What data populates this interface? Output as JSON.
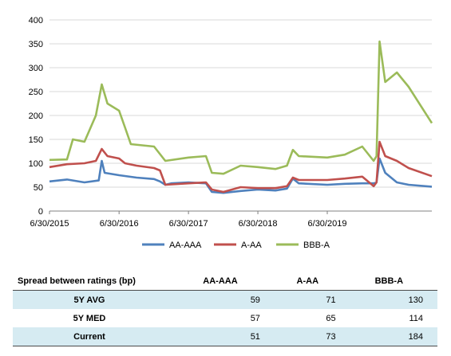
{
  "chart_data": {
    "type": "line",
    "x_start": "6/30/2015",
    "x_end": "12/31/2020",
    "x_ticks": [
      "6/30/2015",
      "6/30/2016",
      "6/30/2017",
      "6/30/2018",
      "6/30/2019"
    ],
    "y_ticks": [
      0,
      50,
      100,
      150,
      200,
      250,
      300,
      350,
      400
    ],
    "ylim": [
      0,
      400
    ],
    "grid": true,
    "legend_position": "bottom",
    "series": [
      {
        "name": "AA-AAA",
        "color": "#4f81bd",
        "points": [
          [
            "6/30/2015",
            62
          ],
          [
            "9/30/2015",
            66
          ],
          [
            "12/31/2015",
            60
          ],
          [
            "3/15/2016",
            64
          ],
          [
            "3/31/2016",
            105
          ],
          [
            "4/15/2016",
            80
          ],
          [
            "6/30/2016",
            75
          ],
          [
            "9/30/2016",
            70
          ],
          [
            "12/31/2016",
            67
          ],
          [
            "1/31/2017",
            62
          ],
          [
            "2/28/2017",
            55
          ],
          [
            "3/31/2017",
            58
          ],
          [
            "6/30/2017",
            60
          ],
          [
            "9/30/2017",
            58
          ],
          [
            "10/31/2017",
            40
          ],
          [
            "12/31/2017",
            38
          ],
          [
            "3/31/2018",
            42
          ],
          [
            "6/30/2018",
            45
          ],
          [
            "9/30/2018",
            43
          ],
          [
            "11/30/2018",
            47
          ],
          [
            "12/31/2018",
            68
          ],
          [
            "1/31/2019",
            58
          ],
          [
            "6/30/2019",
            55
          ],
          [
            "9/30/2019",
            57
          ],
          [
            "12/31/2019",
            58
          ],
          [
            "2/29/2020",
            58
          ],
          [
            "3/15/2020",
            60
          ],
          [
            "3/31/2020",
            110
          ],
          [
            "4/30/2020",
            80
          ],
          [
            "6/30/2020",
            60
          ],
          [
            "8/31/2020",
            55
          ],
          [
            "12/31/2020",
            51
          ]
        ]
      },
      {
        "name": "A-AA",
        "color": "#c0504d",
        "points": [
          [
            "6/30/2015",
            92
          ],
          [
            "9/30/2015",
            98
          ],
          [
            "12/31/2015",
            100
          ],
          [
            "2/29/2016",
            105
          ],
          [
            "3/31/2016",
            130
          ],
          [
            "4/30/2016",
            115
          ],
          [
            "6/30/2016",
            110
          ],
          [
            "7/31/2016",
            100
          ],
          [
            "9/30/2016",
            95
          ],
          [
            "12/31/2016",
            90
          ],
          [
            "1/31/2017",
            85
          ],
          [
            "2/28/2017",
            55
          ],
          [
            "6/30/2017",
            58
          ],
          [
            "9/30/2017",
            60
          ],
          [
            "10/31/2017",
            45
          ],
          [
            "12/31/2017",
            40
          ],
          [
            "3/31/2018",
            50
          ],
          [
            "6/30/2018",
            48
          ],
          [
            "9/30/2018",
            48
          ],
          [
            "11/30/2018",
            52
          ],
          [
            "12/31/2018",
            70
          ],
          [
            "1/31/2019",
            65
          ],
          [
            "6/30/2019",
            65
          ],
          [
            "9/30/2019",
            68
          ],
          [
            "12/31/2019",
            72
          ],
          [
            "2/29/2020",
            52
          ],
          [
            "3/15/2020",
            60
          ],
          [
            "3/31/2020",
            145
          ],
          [
            "4/30/2020",
            115
          ],
          [
            "6/30/2020",
            105
          ],
          [
            "8/31/2020",
            90
          ],
          [
            "12/31/2020",
            73
          ]
        ]
      },
      {
        "name": "BBB-A",
        "color": "#9bbb59",
        "points": [
          [
            "6/30/2015",
            107
          ],
          [
            "9/30/2015",
            108
          ],
          [
            "10/31/2015",
            150
          ],
          [
            "12/31/2015",
            145
          ],
          [
            "2/29/2016",
            200
          ],
          [
            "3/31/2016",
            265
          ],
          [
            "4/30/2016",
            225
          ],
          [
            "6/30/2016",
            210
          ],
          [
            "7/31/2016",
            175
          ],
          [
            "8/31/2016",
            140
          ],
          [
            "12/31/2016",
            135
          ],
          [
            "2/28/2017",
            105
          ],
          [
            "6/30/2017",
            112
          ],
          [
            "9/30/2017",
            115
          ],
          [
            "10/31/2017",
            80
          ],
          [
            "12/31/2017",
            78
          ],
          [
            "3/31/2018",
            95
          ],
          [
            "6/30/2018",
            92
          ],
          [
            "9/30/2018",
            88
          ],
          [
            "11/30/2018",
            95
          ],
          [
            "12/31/2018",
            128
          ],
          [
            "1/31/2019",
            115
          ],
          [
            "6/30/2019",
            112
          ],
          [
            "9/30/2019",
            118
          ],
          [
            "12/31/2019",
            135
          ],
          [
            "2/29/2020",
            105
          ],
          [
            "3/15/2020",
            115
          ],
          [
            "3/31/2020",
            355
          ],
          [
            "4/30/2020",
            270
          ],
          [
            "6/30/2020",
            290
          ],
          [
            "8/31/2020",
            260
          ],
          [
            "12/31/2020",
            184
          ]
        ]
      }
    ]
  },
  "table": {
    "header": [
      "Spread between ratings (bp)",
      "AA-AAA",
      "A-AA",
      "BBB-A"
    ],
    "rows": [
      {
        "label": "5Y AVG",
        "values": [
          "59",
          "71",
          "130"
        ]
      },
      {
        "label": "5Y MED",
        "values": [
          "57",
          "65",
          "114"
        ]
      },
      {
        "label": "Current",
        "values": [
          "51",
          "73",
          "184"
        ]
      }
    ]
  }
}
